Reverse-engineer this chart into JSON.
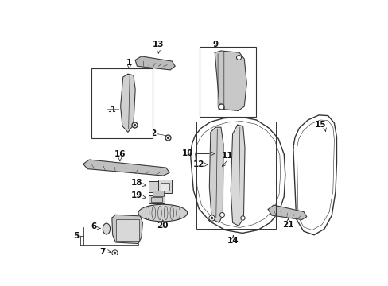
{
  "background_color": "#ffffff",
  "fig_width": 4.89,
  "fig_height": 3.6,
  "dpi": 100,
  "line_color": "#333333",
  "label_color": "#111111",
  "label_size": 7.5,
  "lw": 0.7
}
